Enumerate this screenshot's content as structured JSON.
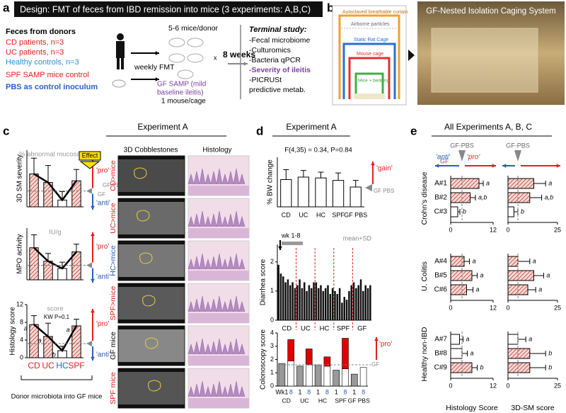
{
  "panel_a": {
    "label": "a",
    "title": "Design: FMT of feces from IBD remission into mice (3 experiments: A,B,C)",
    "donors_heading": "Feces from donors",
    "donors": [
      "CD patients, n=3",
      "UC patients, n=3",
      "Healthy controls, n=3"
    ],
    "spf_control": "SPF SAMP mice control",
    "pbs_control": "PBS as control inoculum",
    "fmt": "weekly FMT",
    "mice_per_donor": "5-6 mice/donor",
    "times": "x",
    "weeks": "8 weeks",
    "recipient": "GF SAMP (mild",
    "recipient_2": "baseline ileitis)",
    "housing": "1 mouse/cage",
    "terminal_heading": "Terminal study:",
    "terminal": [
      "-Fecal microbiome",
      "-Culturomics",
      "-Bacteria qPCR",
      "-Severity of ileitis",
      "-PICRUSt",
      "predictive metab."
    ]
  },
  "panel_b": {
    "label": "b",
    "title": "GF-Nested Isolation Caging System",
    "labels": [
      "Autoclaved breathable curtain",
      "Airborne particles",
      "Static Rat Cage",
      "Mouse cage",
      "Mice + bedding"
    ]
  },
  "panel_c": {
    "label": "c",
    "title": "Experiment A",
    "effect": "Effect",
    "pro": "'pro'",
    "anti": "'anti'",
    "gf_pbs": "GF-PBS",
    "gf": "GF",
    "image_headers": [
      "3D Cobblestones",
      "Histology"
    ],
    "image_rows": [
      "CD>mice",
      "UC>mice",
      "HC>mice",
      "SPF>mice",
      "GF mice",
      "SPF mice"
    ],
    "footer": "Donor microbiota into GF mice"
  },
  "panel_d": {
    "label": "d",
    "title": "Experiment A",
    "gain": "'gain'",
    "pro": "'pro'",
    "gf": "GF",
    "gf_pbs": "GF PBS"
  },
  "panel_e": {
    "label": "e",
    "title": "All Experiments A, B, C",
    "gf_pbs": "GF-PBS",
    "gf": "GF",
    "anti": "'anti'",
    "pro": "'pro'",
    "groups": [
      "Crohn's disease",
      "U. Colitis",
      "Healthy non-IBD"
    ]
  },
  "chart_data": [
    {
      "type": "bar",
      "ylabel": "3D SM severity",
      "note": "% abnormal mucosa/cm",
      "values": [
        5.8,
        4.3,
        1.2,
        4.6
      ],
      "errors": [
        2.8,
        3.0,
        1.5,
        2.0
      ],
      "ylim": [
        0,
        10
      ],
      "reference": 2.8,
      "color": "#c0392b",
      "hatched": [
        true,
        true,
        false,
        true
      ],
      "line": true
    },
    {
      "type": "bar",
      "ylabel": "MPO activity",
      "note": "IU/g",
      "values": [
        6.2,
        3.6,
        2.2,
        5.4
      ],
      "errors": [
        2.5,
        1.5,
        1.2,
        1.5
      ],
      "ylim": [
        0,
        10
      ],
      "reference": 2.8,
      "color": "#c0392b",
      "hatched": [
        true,
        true,
        false,
        true
      ],
      "line": true
    },
    {
      "type": "bar",
      "ylabel": "Histology score",
      "note": "score",
      "stat": "KW P=0.1",
      "categories": [
        "CD",
        "UC",
        "HC",
        "SPF"
      ],
      "category_colors": [
        "#e02020",
        "#e02020",
        "#2a5fbf",
        "#e02020"
      ],
      "values": [
        7.5,
        4.8,
        1.6,
        7.2
      ],
      "errors": [
        2.0,
        3.0,
        1.0,
        1.5
      ],
      "letters": [
        "a",
        "a",
        "b",
        "a"
      ],
      "ylim": [
        0,
        12
      ],
      "yticks": [
        0,
        4,
        8,
        12
      ],
      "reference": 3.2,
      "color": "#c0392b",
      "hatched": [
        true,
        true,
        false,
        true
      ],
      "line": true
    },
    {
      "type": "bar",
      "ylabel": "% BW change",
      "stat": "F(4,35) = 0.34, P=0.84",
      "categories": [
        "CD",
        "UC",
        "HC",
        "SPF",
        "GF PBS"
      ],
      "values": [
        3.3,
        3.6,
        3.5,
        3.2,
        2.4
      ],
      "errors": [
        1.2,
        0.8,
        0.7,
        0.9,
        0.8
      ],
      "ylim": [
        0,
        6
      ],
      "color": "#ffffff"
    },
    {
      "type": "weekly",
      "ylabel": "Diarrhea score",
      "weeks": "wk 1-8",
      "note": "mean+SD",
      "groups": [
        "CD",
        "UC",
        "HC",
        "SPF",
        "GF"
      ],
      "values": [
        1.9,
        1.6,
        1.5,
        1.3,
        1.4,
        1.2,
        1.3,
        1.1,
        1.2,
        1.4,
        1.1,
        1.3,
        1.0,
        1.2,
        1.1,
        1.3,
        1.3,
        1.1,
        1.2,
        1.0,
        1.1,
        1.2,
        0.9,
        1.1,
        1.0,
        0.9,
        1.1,
        0.6,
        0.8,
        0.7,
        1.0,
        1.2,
        1.3,
        1.1,
        1.2,
        1.4,
        1.0,
        1.2,
        1.1,
        1.2
      ],
      "ylim": [
        0,
        2.6
      ],
      "yticks": [
        0,
        1,
        2
      ],
      "color": "#111111"
    },
    {
      "type": "stacked",
      "ylabel": "Colonoscopy score",
      "categories": [
        "Wk1",
        "8",
        "1",
        "8",
        "1",
        "8",
        "1",
        "8",
        "1",
        "8"
      ],
      "groups": [
        "CD",
        "UC",
        "HC",
        "SPF",
        "GF PBS"
      ],
      "series": [
        {
          "colors": [
            "#999999",
            "#ffffff",
            "#999999",
            "#ffffff",
            "#999999",
            "#ffffff",
            "#999999",
            "#ffffff",
            "#999999",
            "#ffffff"
          ],
          "values": [
            1.7,
            1.9,
            1.5,
            1.6,
            1.6,
            1.5,
            1.2,
            1.3,
            0.9,
            1.4
          ]
        },
        {
          "color": "#e00000",
          "values": [
            null,
            1.6,
            null,
            1.2,
            null,
            0.7,
            null,
            2.3,
            null,
            null
          ]
        }
      ],
      "ylim": [
        0,
        4
      ],
      "yticks": [
        0,
        1,
        2,
        3,
        4
      ]
    },
    {
      "type": "hbar",
      "xlabel": "Histology Score",
      "categories": [
        "A#1",
        "B#2",
        "C#3",
        "A#4",
        "B#5",
        "C#6",
        "A#7",
        "B#8",
        "C#9"
      ],
      "values": [
        8.0,
        5.5,
        2.0,
        3.8,
        6.0,
        4.5,
        2.5,
        3.2,
        6.0
      ],
      "errors": [
        1.2,
        1.5,
        0.6,
        1.5,
        1.5,
        1.8,
        1.0,
        1.5,
        1.5
      ],
      "letters": [
        "a",
        "a,b",
        "b",
        "a",
        "a",
        "a",
        "a",
        "a",
        "b"
      ],
      "xlim": [
        0,
        12
      ],
      "xticks": [
        0,
        12
      ],
      "reference": 3.2,
      "color": "#c0392b",
      "hatched": [
        true,
        true,
        false,
        true,
        true,
        true,
        false,
        false,
        true
      ]
    },
    {
      "type": "hbar",
      "xlabel": "3D-SM score",
      "categories": [
        "A#1",
        "B#2",
        "C#3",
        "A#4",
        "B#5",
        "C#6",
        "A#7",
        "B#8",
        "C#9"
      ],
      "values": [
        13,
        11,
        3,
        5,
        13,
        10,
        5,
        11,
        11
      ],
      "errors": [
        6,
        6,
        2,
        6,
        5,
        4,
        4,
        8,
        8
      ],
      "letters": [
        "a",
        "a,b",
        "b",
        "a",
        "a",
        "a",
        "a",
        "b",
        "b"
      ],
      "xlim": [
        0,
        25
      ],
      "xticks": [
        0,
        25
      ],
      "reference": 5,
      "color": "#c0392b",
      "hatched": [
        true,
        true,
        false,
        true,
        true,
        true,
        false,
        true,
        true
      ]
    }
  ]
}
